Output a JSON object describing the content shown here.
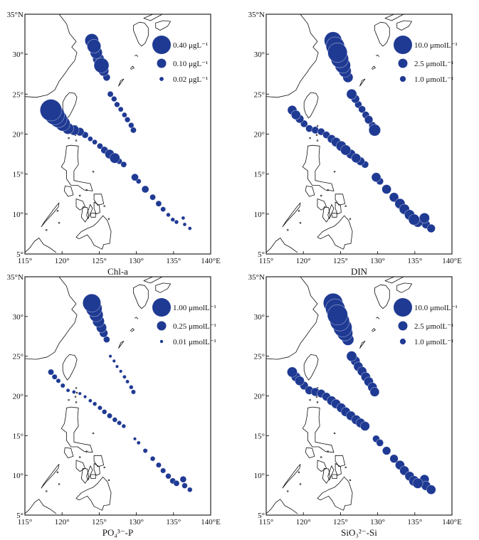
{
  "figure": {
    "colors": {
      "dot": "#1f3a93",
      "line": "#111111",
      "background": "#ffffff"
    },
    "axis": {
      "lon_min": 115,
      "lon_max": 140,
      "lat_min": 5,
      "lat_max": 35,
      "x_ticks": [
        {
          "value": 115,
          "label": "115°"
        },
        {
          "value": 120,
          "label": "120°"
        },
        {
          "value": 125,
          "label": "125°"
        },
        {
          "value": 130,
          "label": "130°"
        },
        {
          "value": 135,
          "label": "135°"
        },
        {
          "value": 140,
          "label": "140°E"
        }
      ],
      "y_ticks": [
        {
          "value": 5,
          "label": "5°"
        },
        {
          "value": 10,
          "label": "10°"
        },
        {
          "value": 15,
          "label": "15°"
        },
        {
          "value": 20,
          "label": "20°"
        },
        {
          "value": 25,
          "label": "25°"
        },
        {
          "value": 30,
          "label": "30°"
        },
        {
          "value": 35,
          "label": "35°N"
        }
      ]
    },
    "stations": [
      [
        124.0,
        31.7
      ],
      [
        124.3,
        31.0
      ],
      [
        124.6,
        30.2
      ],
      [
        124.9,
        29.4
      ],
      [
        125.3,
        28.6
      ],
      [
        125.6,
        27.9
      ],
      [
        126.0,
        27.1
      ],
      [
        126.5,
        25.0
      ],
      [
        127.0,
        24.4
      ],
      [
        127.4,
        23.7
      ],
      [
        127.9,
        23.1
      ],
      [
        128.4,
        22.4
      ],
      [
        128.8,
        21.8
      ],
      [
        129.3,
        21.1
      ],
      [
        129.6,
        20.5
      ],
      [
        118.5,
        23.0
      ],
      [
        119.0,
        22.4
      ],
      [
        119.5,
        21.9
      ],
      [
        120.1,
        21.3
      ],
      [
        120.8,
        20.7
      ],
      [
        121.6,
        20.5
      ],
      [
        122.4,
        20.3
      ],
      [
        123.1,
        19.9
      ],
      [
        123.8,
        19.4
      ],
      [
        124.4,
        19.0
      ],
      [
        125.1,
        18.5
      ],
      [
        125.7,
        18.0
      ],
      [
        126.4,
        17.5
      ],
      [
        127.1,
        17.0
      ],
      [
        127.7,
        16.6
      ],
      [
        128.3,
        16.2
      ],
      [
        129.8,
        14.6
      ],
      [
        130.3,
        14.1
      ],
      [
        131.2,
        13.1
      ],
      [
        132.2,
        12.1
      ],
      [
        133.0,
        11.3
      ],
      [
        133.6,
        10.6
      ],
      [
        134.3,
        9.9
      ],
      [
        134.9,
        9.3
      ],
      [
        135.4,
        9.0
      ],
      [
        136.3,
        9.5
      ],
      [
        136.5,
        8.7
      ],
      [
        137.2,
        8.2
      ]
    ],
    "panels": [
      {
        "id": "chla",
        "label": "Chl-a",
        "legend": [
          {
            "value": 0.4,
            "label": "0.40 μgL⁻¹"
          },
          {
            "value": 0.1,
            "label": "0.10 μgL⁻¹"
          },
          {
            "value": 0.02,
            "label": "0.02 μgL⁻¹"
          }
        ],
        "values": [
          0.22,
          0.22,
          0.17,
          0.15,
          0.26,
          0.12,
          0.06,
          0.04,
          0.035,
          0.035,
          0.03,
          0.03,
          0.035,
          0.035,
          0.04,
          0.55,
          0.45,
          0.35,
          0.25,
          0.15,
          0.12,
          0.08,
          0.05,
          0.03,
          0.03,
          0.04,
          0.06,
          0.1,
          0.12,
          0.04,
          0.04,
          0.06,
          0.03,
          0.06,
          0.04,
          0.04,
          0.03,
          0.02,
          0.02,
          0.02,
          0.015,
          0.015,
          0.015
        ]
      },
      {
        "id": "din",
        "label": "DIN",
        "legend": [
          {
            "value": 10.0,
            "label": "10.0 μmolL⁻¹"
          },
          {
            "value": 2.5,
            "label": "2.5 μmolL⁻¹"
          },
          {
            "value": 1.0,
            "label": "1.0 μmolL⁻¹"
          }
        ],
        "values": [
          9,
          10,
          11,
          9,
          7,
          4.5,
          3,
          3,
          2,
          1.5,
          1.5,
          1.5,
          2,
          1.5,
          4,
          2.5,
          2.5,
          2,
          1.5,
          1.5,
          1.5,
          1.5,
          1.5,
          2,
          2.5,
          3,
          3,
          2.5,
          2.5,
          2,
          1.5,
          2.5,
          1.5,
          2.5,
          2.5,
          3,
          3,
          3,
          3.5,
          3,
          3,
          2,
          2
        ]
      },
      {
        "id": "po4",
        "label": "PO₄³⁻-P",
        "legend": [
          {
            "value": 1.0,
            "label": "1.00 μmolL⁻¹"
          },
          {
            "value": 0.25,
            "label": "0.25 μmolL⁻¹"
          },
          {
            "value": 0.01,
            "label": "0.01 μmolL⁻¹"
          }
        ],
        "values": [
          0.95,
          0.75,
          0.55,
          0.4,
          0.3,
          0.2,
          0.12,
          0.03,
          0.03,
          0.03,
          0.03,
          0.04,
          0.04,
          0.05,
          0.06,
          0.1,
          0.08,
          0.06,
          0.06,
          0.04,
          0.04,
          0.03,
          0.03,
          0.04,
          0.05,
          0.06,
          0.07,
          0.08,
          0.07,
          0.06,
          0.05,
          0.03,
          0.04,
          0.06,
          0.07,
          0.08,
          0.08,
          0.09,
          0.1,
          0.1,
          0.12,
          0.09,
          0.07
        ]
      },
      {
        "id": "si",
        "label": "SiO₃²⁻-Si",
        "legend": [
          {
            "value": 10.0,
            "label": "10.0 μmolL⁻¹"
          },
          {
            "value": 2.5,
            "label": "2.5 μmolL⁻¹"
          },
          {
            "value": 1.0,
            "label": "1.0 μmolL⁻¹"
          }
        ],
        "values": [
          11,
          11,
          12,
          11,
          10,
          7,
          4,
          3,
          2.5,
          2.5,
          2.5,
          2.5,
          2.5,
          2.5,
          2.5,
          3,
          2.5,
          2.5,
          2,
          2,
          2,
          2,
          2,
          2.5,
          2.5,
          2.5,
          2.5,
          2.5,
          2.5,
          2.5,
          2.5,
          1.5,
          1.5,
          2,
          2,
          2.5,
          2.5,
          2.5,
          3,
          3,
          2.5,
          2.5,
          2.5
        ]
      }
    ]
  }
}
